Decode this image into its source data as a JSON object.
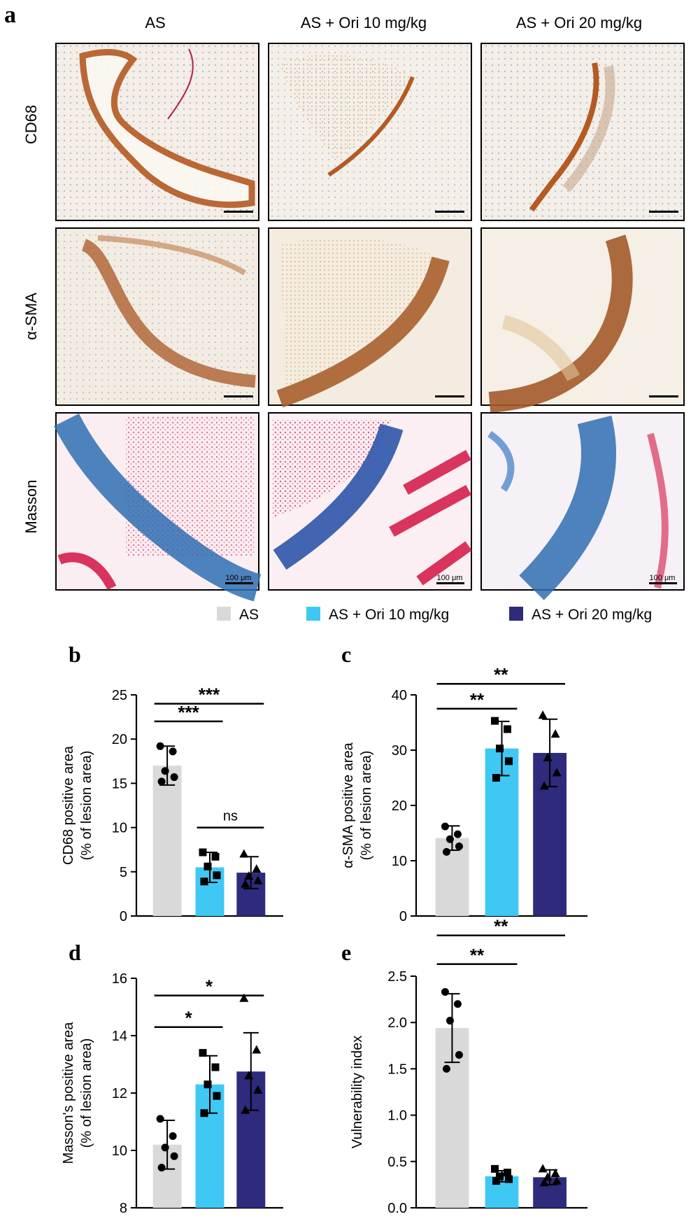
{
  "panel_a": {
    "letter": "a",
    "columns": [
      "AS",
      "AS + Ori 10 mg/kg",
      "AS + Ori 20 mg/kg"
    ],
    "rows": [
      "CD68",
      "α-SMA",
      "Masson"
    ],
    "scale_bar_label": "100 μm"
  },
  "legend": {
    "items": [
      {
        "label": "AS",
        "color": "#d9d9d9"
      },
      {
        "label": "AS + Ori 10 mg/kg",
        "color": "#3fc8f4"
      },
      {
        "label": "AS + Ori 20 mg/kg",
        "color": "#2e2a7c"
      }
    ]
  },
  "colors": {
    "as": "#d9d9d9",
    "ori10": "#3fc8f4",
    "ori20": "#2e2a7c",
    "stain_brown": "#a8521f",
    "stain_blue": "#2f6fb3",
    "stain_red": "#d9345d"
  },
  "chart_data": [
    {
      "panel": "b",
      "type": "bar",
      "ylabel": [
        "CD68 positive area",
        "(% of lesion area)"
      ],
      "ylim": [
        0,
        25
      ],
      "yticks": [
        0,
        5,
        10,
        15,
        20,
        25
      ],
      "categories": [
        "AS",
        "AS + Ori 10 mg/kg",
        "AS + Ori 20 mg/kg"
      ],
      "values": [
        17.0,
        5.5,
        4.9
      ],
      "errors": [
        2.2,
        1.7,
        1.8
      ],
      "markers": [
        "circle",
        "square",
        "triangle"
      ],
      "points": [
        [
          19.2,
          18.6,
          16.4,
          15.7,
          15.2
        ],
        [
          7.2,
          6.7,
          5.6,
          4.6,
          3.9
        ],
        [
          7.0,
          5.3,
          4.5,
          4.0,
          3.6
        ]
      ],
      "comparisons": [
        {
          "from": 0,
          "to": 1,
          "label": "***",
          "y": 22.0
        },
        {
          "from": 0,
          "to": 2,
          "label": "***",
          "y": 24.0
        },
        {
          "from": 1,
          "to": 2,
          "label": "ns",
          "y": 10.0
        }
      ]
    },
    {
      "panel": "c",
      "type": "bar",
      "ylabel": [
        "α-SMA positive area",
        "(% of lesion area)"
      ],
      "ylim": [
        0,
        40
      ],
      "yticks": [
        0,
        10,
        20,
        30,
        40
      ],
      "categories": [
        "AS",
        "AS + Ori 10 mg/kg",
        "AS + Ori 20 mg/kg"
      ],
      "values": [
        14.1,
        30.3,
        29.5
      ],
      "errors": [
        2.2,
        4.9,
        6.1
      ],
      "markers": [
        "circle",
        "square",
        "triangle"
      ],
      "points": [
        [
          16.2,
          14.8,
          13.9,
          12.6,
          11.6
        ],
        [
          35.3,
          33.8,
          30.3,
          28.0,
          25.0
        ],
        [
          36.3,
          32.9,
          28.6,
          25.9,
          23.5
        ]
      ],
      "comparisons": [
        {
          "from": 0,
          "to": 1,
          "label": "**",
          "y": 37.5
        },
        {
          "from": 0,
          "to": 2,
          "label": "**",
          "y": 42.0
        }
      ]
    },
    {
      "panel": "d",
      "type": "bar",
      "ylabel": [
        "Masson's positive area",
        "(% of lesion area)"
      ],
      "ylim": [
        8,
        16
      ],
      "yticks": [
        8,
        10,
        12,
        14,
        16
      ],
      "categories": [
        "AS",
        "AS + Ori 10 mg/kg",
        "AS + Ori 20 mg/kg"
      ],
      "values": [
        10.2,
        12.3,
        12.75
      ],
      "errors": [
        0.85,
        1.0,
        1.35
      ],
      "markers": [
        "circle",
        "square",
        "triangle"
      ],
      "points": [
        [
          11.1,
          10.5,
          10.1,
          9.8,
          9.4
        ],
        [
          13.4,
          12.9,
          12.3,
          11.9,
          11.3
        ],
        [
          15.3,
          13.5,
          12.6,
          12.1,
          11.4
        ]
      ],
      "comparisons": [
        {
          "from": 0,
          "to": 1,
          "label": "*",
          "y": 14.3
        },
        {
          "from": 0,
          "to": 2,
          "label": "*",
          "y": 15.4
        }
      ]
    },
    {
      "panel": "e",
      "type": "bar",
      "ylabel": [
        "Vulnerability index"
      ],
      "ylim": [
        0,
        2.5
      ],
      "yticks": [
        0.0,
        0.5,
        1.0,
        1.5,
        2.0,
        2.5
      ],
      "ytick_labels": [
        "0.0",
        "0.5",
        "1.0",
        "1.5",
        "2.0",
        "2.5"
      ],
      "categories": [
        "AS",
        "AS + Ori 10 mg/kg",
        "AS + Ori 20 mg/kg"
      ],
      "values": [
        1.94,
        0.34,
        0.33
      ],
      "errors": [
        0.37,
        0.06,
        0.08
      ],
      "markers": [
        "circle",
        "square",
        "triangle"
      ],
      "points": [
        [
          2.33,
          2.2,
          2.02,
          1.65,
          1.5
        ],
        [
          0.42,
          0.38,
          0.34,
          0.31,
          0.29
        ],
        [
          0.42,
          0.37,
          0.33,
          0.29,
          0.27
        ]
      ],
      "comparisons": [
        {
          "from": 0,
          "to": 1,
          "label": "**",
          "y": 2.63
        },
        {
          "from": 0,
          "to": 2,
          "label": "**",
          "y": 2.94
        }
      ]
    }
  ]
}
